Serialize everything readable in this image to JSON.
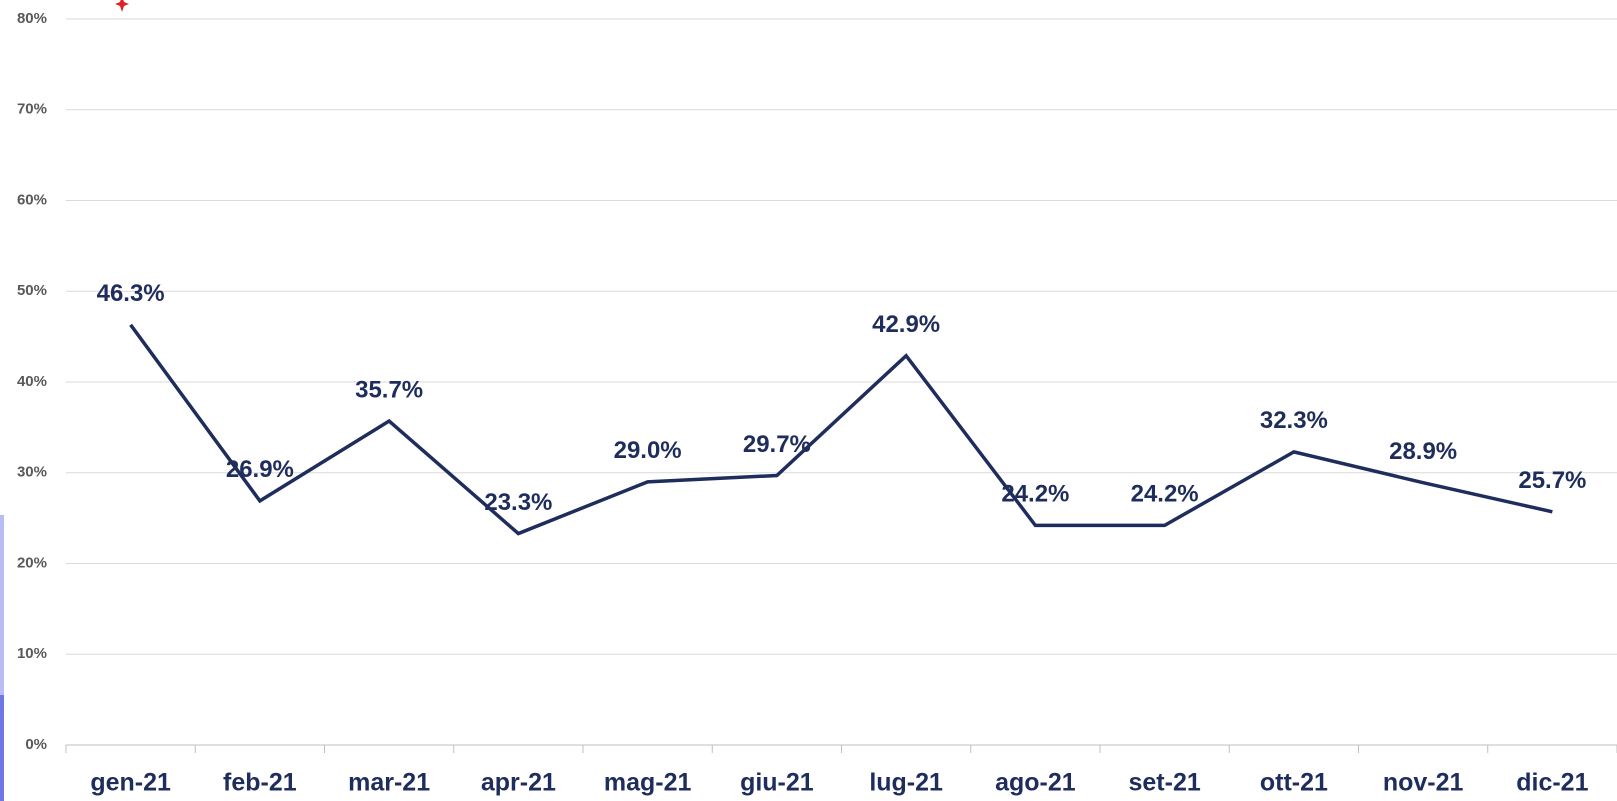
{
  "chart_data": {
    "type": "line",
    "categories": [
      "gen-21",
      "feb-21",
      "mar-21",
      "apr-21",
      "mag-21",
      "giu-21",
      "lug-21",
      "ago-21",
      "set-21",
      "ott-21",
      "nov-21",
      "dic-21"
    ],
    "values": [
      46.3,
      26.9,
      35.7,
      23.3,
      29.0,
      29.7,
      42.9,
      24.2,
      24.2,
      32.3,
      28.9,
      25.7
    ],
    "value_labels": [
      "46.3%",
      "26.9%",
      "35.7%",
      "23.3%",
      "29.0%",
      "29.7%",
      "42.9%",
      "24.2%",
      "24.2%",
      "32.3%",
      "28.9%",
      "25.7%"
    ],
    "color": "#1f2d5c",
    "ylim": [
      0,
      80
    ],
    "yticks": [
      {
        "value": 0,
        "label": "0%"
      },
      {
        "value": 10,
        "label": "10%"
      },
      {
        "value": 20,
        "label": "20%"
      },
      {
        "value": 30,
        "label": "30%"
      },
      {
        "value": 40,
        "label": "40%"
      },
      {
        "value": 50,
        "label": "50%"
      },
      {
        "value": 60,
        "label": "60%"
      },
      {
        "value": 70,
        "label": "70%"
      },
      {
        "value": 80,
        "label": "80%"
      }
    ],
    "grid": true
  }
}
